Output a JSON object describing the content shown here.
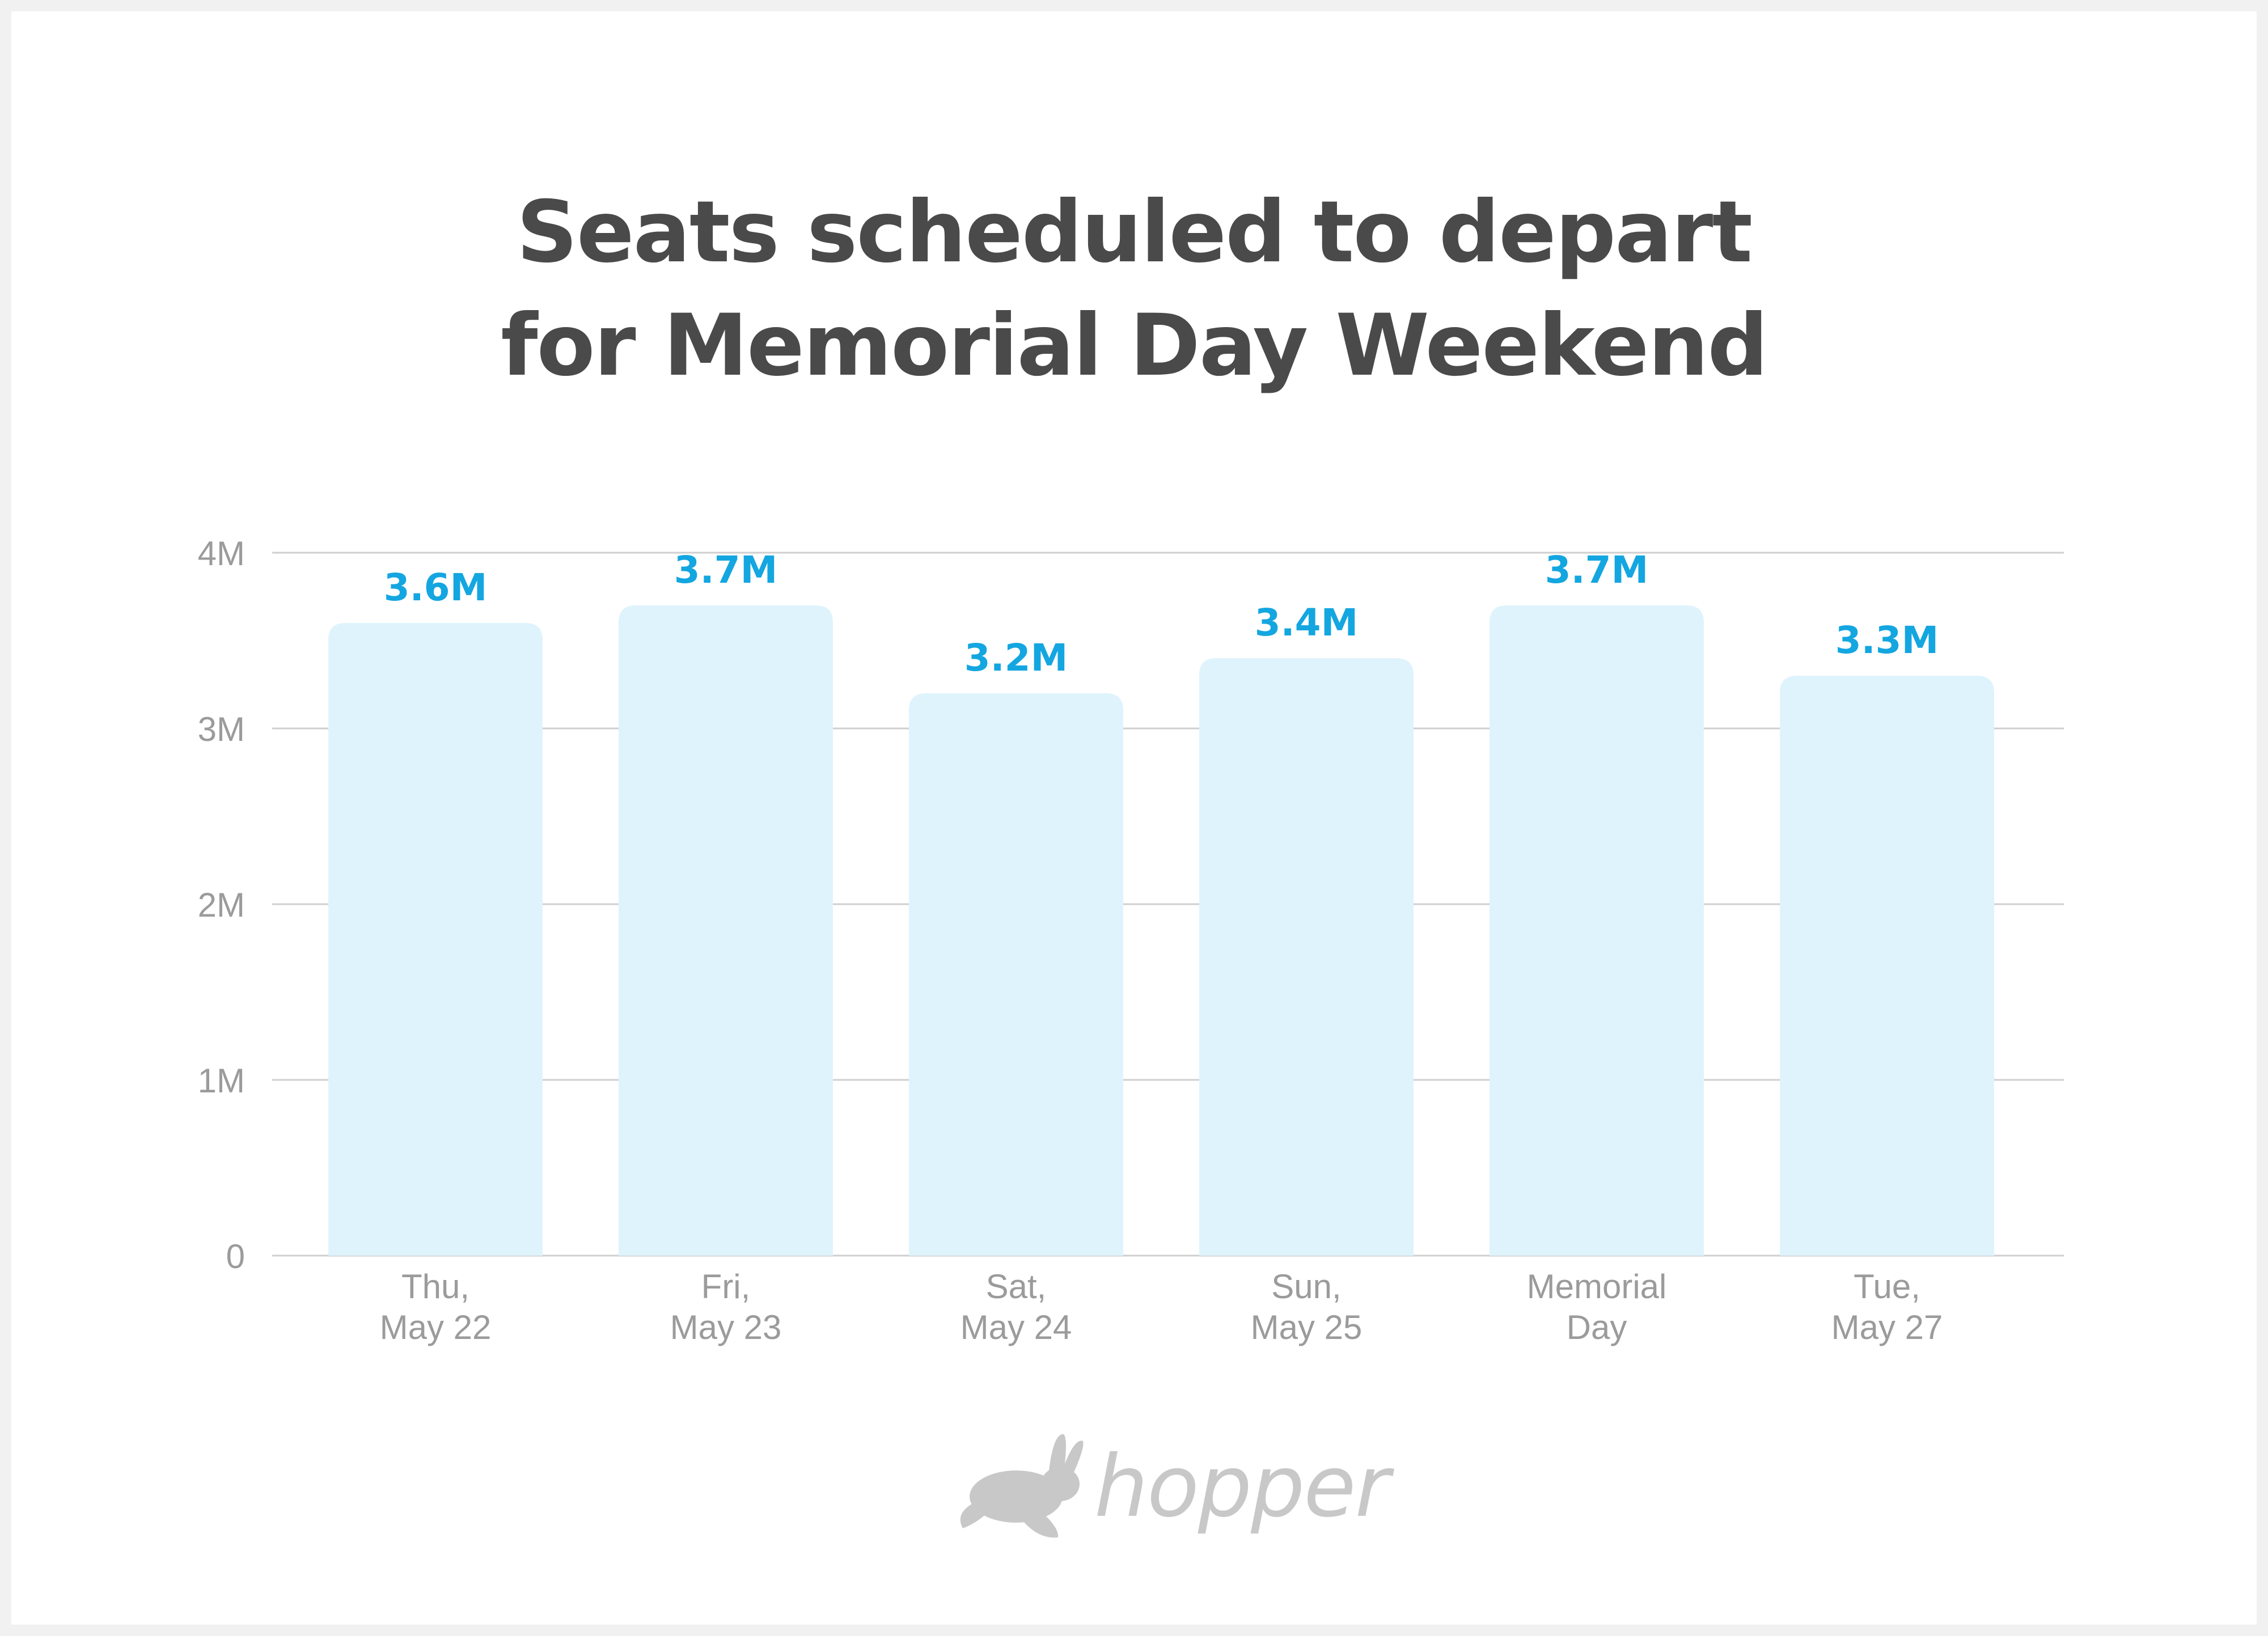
{
  "chart_data": {
    "type": "bar",
    "title_lines": [
      "Seats scheduled to depart",
      "for Memorial Day Weekend"
    ],
    "categories": [
      [
        "Thu,",
        "May 22"
      ],
      [
        "Fri,",
        "May 23"
      ],
      [
        "Sat,",
        "May 24"
      ],
      [
        "Sun,",
        "May 25"
      ],
      [
        "Memorial",
        "Day"
      ],
      [
        "Tue,",
        "May 27"
      ]
    ],
    "values": [
      3.6,
      3.7,
      3.2,
      3.4,
      3.7,
      3.3
    ],
    "value_labels": [
      "3.6M",
      "3.7M",
      "3.2M",
      "3.4M",
      "3.7M",
      "3.3M"
    ],
    "unit": "millions of seats",
    "ylim": [
      0,
      4
    ],
    "yticks": [
      0,
      1,
      2,
      3,
      4
    ],
    "ytick_labels": [
      "0",
      "1M",
      "2M",
      "3M",
      "4M"
    ],
    "grid": true,
    "legend": "none",
    "colors": {
      "bar": "#dff3fc",
      "data_label": "#14a6e0",
      "title": "#4a4a4a",
      "axis_text": "#9b9b9b",
      "grid": "#cfcfcf"
    }
  },
  "brand": {
    "logo_text": "hopper",
    "logo_icon": "rabbit-icon"
  }
}
